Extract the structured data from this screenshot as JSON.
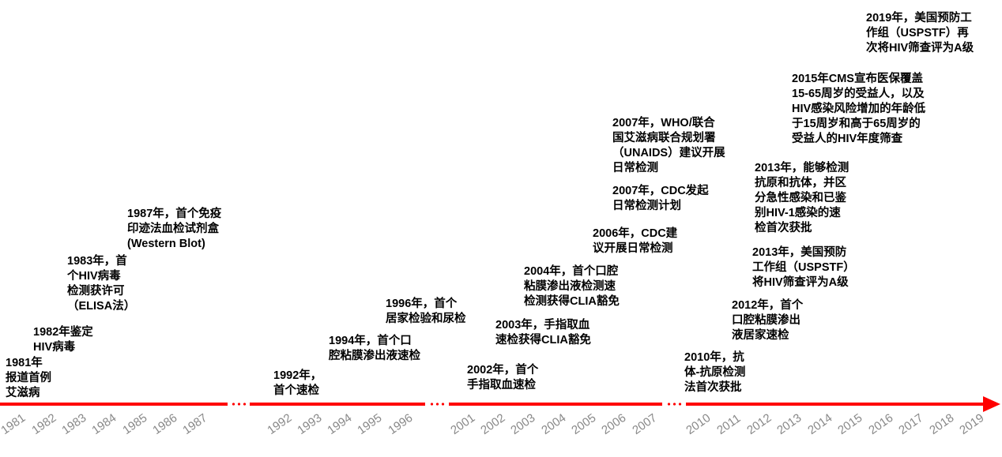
{
  "events": [
    {
      "text": "2019年，美国预防工\n作组（USPSTF）再\n次将HIV筛查评为A级"
    },
    {
      "text": "2015年CMS宣布医保覆盖\n15-65周岁的受益人，以及\nHIV感染风险增加的年龄低\n于15周岁和高于65周岁的\n受益人的HIV年度筛查"
    },
    {
      "text": "2007年，WHO/联合\n国艾滋病联合规划署\n（UNAIDS）建议开展\n日常检测"
    },
    {
      "text": "2013年，能够检测\n抗原和抗体，并区\n分急性感染和已鉴\n别HIV-1感染的速\n检首次获批"
    },
    {
      "text": "2007年，CDC发起\n日常检测计划"
    },
    {
      "text": "1987年，首个免疫\n印迹法血检试剂盒\n(Western Blot)"
    },
    {
      "text": "2006年，CDC建\n议开展日常检测"
    },
    {
      "text": "2013年，美国预防\n工作组（USPSTF）\n将HIV筛查评为A级"
    },
    {
      "text": "1983年，首\n个HIV病毒\n检测获许可\n（ELISA法）"
    },
    {
      "text": "2004年，首个口腔\n粘膜渗出液检测速\n检测获得CLIA豁免"
    },
    {
      "text": "1996年，首个\n居家检验和尿检"
    },
    {
      "text": "2012年，首个\n口腔粘膜渗出\n液居家速检"
    },
    {
      "text": "2003年，手指取血\n速检获得CLIA豁免"
    },
    {
      "text": "1982年鉴定\nHIV病毒"
    },
    {
      "text": "1994年，首个口\n腔粘膜渗出液速检"
    },
    {
      "text": "2010年，抗\n体-抗原检测\n法首次获批"
    },
    {
      "text": "1981年\n报道首例\n艾滋病"
    },
    {
      "text": "2002年，首个\n手指取血速检"
    },
    {
      "text": "1992年，\n首个速检"
    }
  ],
  "years": [
    "1981",
    "1982",
    "1983",
    "1984",
    "1985",
    "1986",
    "1987",
    "1992",
    "1993",
    "1994",
    "1995",
    "1996",
    "2001",
    "2002",
    "2003",
    "2004",
    "2005",
    "2006",
    "2007",
    "2010",
    "2011",
    "2012",
    "2013",
    "2014",
    "2015",
    "2016",
    "2017",
    "2018",
    "2019"
  ],
  "colors": {
    "axis": "#ff0000",
    "year_text": "#888888",
    "event_text": "#000000"
  }
}
